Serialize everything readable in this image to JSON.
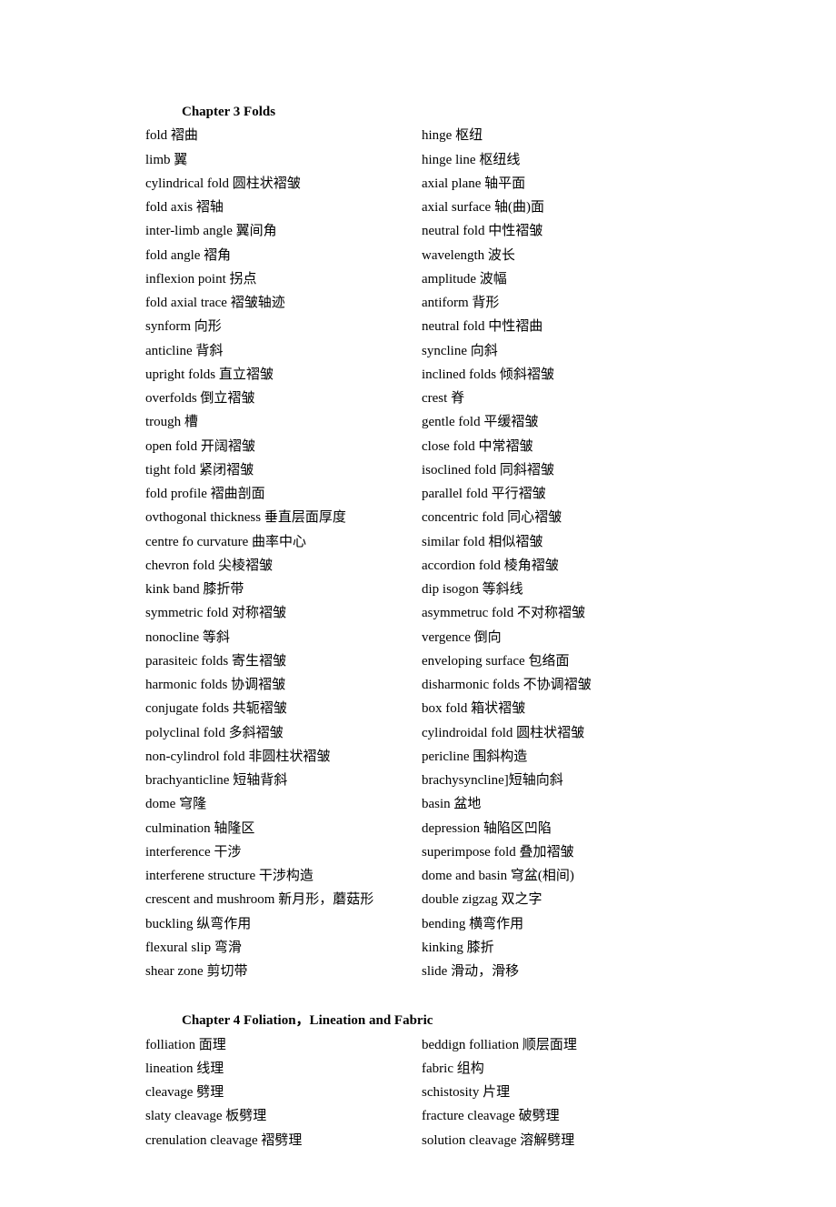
{
  "chapters": [
    {
      "title": "Chapter 3 Folds",
      "terms": [
        [
          "fold 褶曲",
          "hinge 枢纽"
        ],
        [
          "limb 翼",
          "hinge line 枢纽线"
        ],
        [
          "cylindrical fold 圆柱状褶皱",
          "axial plane 轴平面"
        ],
        [
          "fold axis 褶轴",
          "axial surface 轴(曲)面"
        ],
        [
          "inter-limb angle 翼间角",
          "neutral fold 中性褶皱"
        ],
        [
          "fold angle 褶角",
          "wavelength 波长"
        ],
        [
          "inflexion point 拐点",
          "amplitude 波幅"
        ],
        [
          "fold axial trace 褶皱轴迹",
          "antiform 背形"
        ],
        [
          "synform 向形",
          "neutral fold 中性褶曲"
        ],
        [
          "anticline 背斜",
          "syncline 向斜"
        ],
        [
          "upright folds 直立褶皱",
          "inclined folds 倾斜褶皱"
        ],
        [
          "overfolds 倒立褶皱",
          "crest 脊"
        ],
        [
          "trough 槽",
          "gentle fold 平缓褶皱"
        ],
        [
          "open fold 开阔褶皱",
          "close fold 中常褶皱"
        ],
        [
          "tight fold 紧闭褶皱",
          "isoclined fold 同斜褶皱"
        ],
        [
          "fold profile 褶曲剖面",
          "parallel fold 平行褶皱"
        ],
        [
          "ovthogonal thickness 垂直层面厚度",
          "concentric fold 同心褶皱"
        ],
        [
          "centre fo curvature 曲率中心",
          "similar fold 相似褶皱"
        ],
        [
          "chevron fold 尖棱褶皱",
          "accordion fold 棱角褶皱"
        ],
        [
          "kink band 膝折带",
          "dip isogon 等斜线"
        ],
        [
          "symmetric fold 对称褶皱",
          "asymmetruc fold 不对称褶皱"
        ],
        [
          "nonocline 等斜",
          "vergence 倒向"
        ],
        [
          "parasiteic folds 寄生褶皱",
          "enveloping surface 包络面"
        ],
        [
          "harmonic folds 协调褶皱",
          "disharmonic folds 不协调褶皱"
        ],
        [
          "conjugate folds 共轭褶皱",
          "box fold 箱状褶皱"
        ],
        [
          "polyclinal fold 多斜褶皱",
          "cylindroidal fold 圆柱状褶皱"
        ],
        [
          "non-cylindrol fold 非圆柱状褶皱",
          "pericline 围斜构造"
        ],
        [
          "brachyanticline 短轴背斜",
          "brachysyncline]短轴向斜"
        ],
        [
          "dome 穹隆",
          "basin 盆地"
        ],
        [
          "culmination 轴隆区",
          "depression 轴陷区凹陷"
        ],
        [
          "interference 干涉",
          "superimpose fold 叠加褶皱"
        ],
        [
          "interferene structure 干涉构造",
          "dome and basin 穹盆(相间)"
        ],
        [
          "crescent and mushroom 新月形，蘑菇形",
          "double zigzag 双之字"
        ],
        [
          "buckling 纵弯作用",
          "bending 横弯作用"
        ],
        [
          "flexural slip 弯滑",
          "kinking 膝折"
        ],
        [
          "shear zone 剪切带",
          "slide 滑动，滑移"
        ]
      ]
    },
    {
      "title": "Chapter 4 Foliation，Lineation and Fabric",
      "terms": [
        [
          "folliation 面理",
          "beddign folliation 顺层面理"
        ],
        [
          "lineation 线理",
          "fabric 组构"
        ],
        [
          "cleavage 劈理",
          "schistosity 片理"
        ],
        [
          "slaty cleavage 板劈理",
          "fracture cleavage 破劈理"
        ],
        [
          "crenulation cleavage 褶劈理",
          "solution cleavage 溶解劈理"
        ]
      ]
    }
  ]
}
